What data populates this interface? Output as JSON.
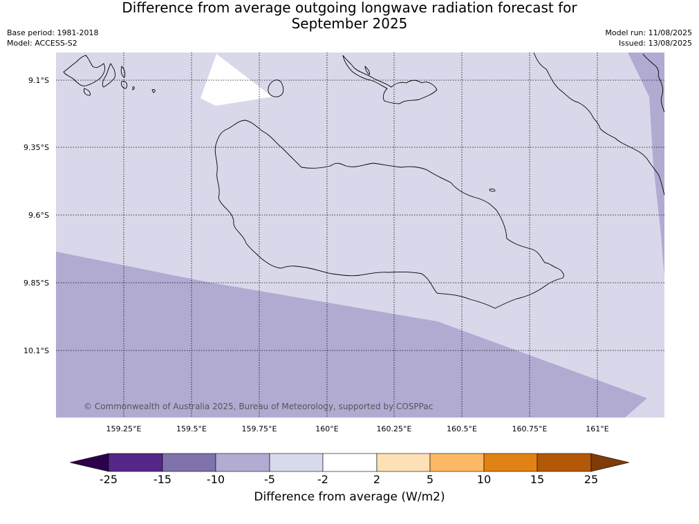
{
  "title": {
    "line1": "Difference from average outgoing longwave radiation forecast for",
    "line2": "September 2025"
  },
  "meta_left": {
    "base_period": "Base period: 1981-2018",
    "model": "Model: ACCESS-S2"
  },
  "meta_right": {
    "model_run": "Model run: 11/08/2025",
    "issued": "Issued: 13/08/2025"
  },
  "map": {
    "lat_labels": [
      "9.1°S",
      "9.35°S",
      "9.6°S",
      "9.85°S",
      "10.1°S"
    ],
    "lon_labels": [
      "159.25°E",
      "159.5°E",
      "159.75°E",
      "160°E",
      "160.25°E",
      "160.5°E",
      "160.75°E",
      "161°E"
    ],
    "copyright": "© Commonwealth of Australia 2025, Bureau of Meteorology, supported by COSPPac",
    "region_colors": {
      "minus5_to_minus2": "#d8d8ea",
      "minus10_to_minus5": "#b1abd2",
      "minus2_to_2": "#ffffff"
    }
  },
  "colorbar": {
    "title": "Difference from average (W/m2)",
    "tick_labels": [
      "-25",
      "-15",
      "-10",
      "-5",
      "-2",
      "2",
      "5",
      "10",
      "15",
      "25"
    ],
    "colors": [
      "#2d004b",
      "#542788",
      "#8073ac",
      "#b2abd2",
      "#d8daeb",
      "#ffffff",
      "#fee0b6",
      "#fdb863",
      "#e08214",
      "#b35806",
      "#7f3b08"
    ]
  }
}
